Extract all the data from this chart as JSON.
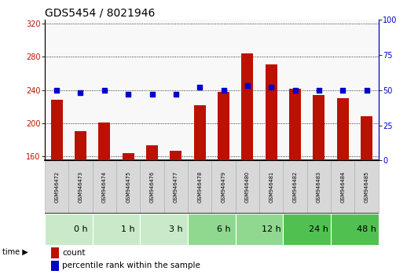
{
  "title": "GDS5454 / 8021946",
  "samples": [
    "GSM946472",
    "GSM946473",
    "GSM946474",
    "GSM946475",
    "GSM946476",
    "GSM946477",
    "GSM946478",
    "GSM946479",
    "GSM946480",
    "GSM946481",
    "GSM946482",
    "GSM946483",
    "GSM946484",
    "GSM946485"
  ],
  "counts": [
    228,
    190,
    201,
    164,
    173,
    167,
    222,
    238,
    284,
    271,
    242,
    234,
    230,
    208
  ],
  "percentiles": [
    50,
    48,
    50,
    47,
    47,
    47,
    52,
    50,
    53,
    52,
    50,
    50,
    50,
    50
  ],
  "time_groups": [
    {
      "label": "0 h",
      "start": 0,
      "end": 2,
      "color": "#c8eac8"
    },
    {
      "label": "1 h",
      "start": 2,
      "end": 4,
      "color": "#c8eac8"
    },
    {
      "label": "3 h",
      "start": 4,
      "end": 6,
      "color": "#c8eac8"
    },
    {
      "label": "6 h",
      "start": 6,
      "end": 8,
      "color": "#90d890"
    },
    {
      "label": "12 h",
      "start": 8,
      "end": 10,
      "color": "#90d890"
    },
    {
      "label": "24 h",
      "start": 10,
      "end": 12,
      "color": "#50c050"
    },
    {
      "label": "48 h",
      "start": 12,
      "end": 14,
      "color": "#50c050"
    }
  ],
  "ylim_left": [
    155,
    325
  ],
  "ylim_right": [
    0,
    100
  ],
  "yticks_left": [
    160,
    200,
    240,
    280,
    320
  ],
  "yticks_right": [
    0,
    25,
    50,
    75,
    100
  ],
  "bar_color": "#bb1100",
  "dot_color": "#0000cc",
  "plot_bg": "#f8f8f8",
  "title_fontsize": 10,
  "tick_fontsize": 7,
  "sample_fontsize": 5,
  "time_fontsize": 8,
  "legend_fontsize": 7.5
}
